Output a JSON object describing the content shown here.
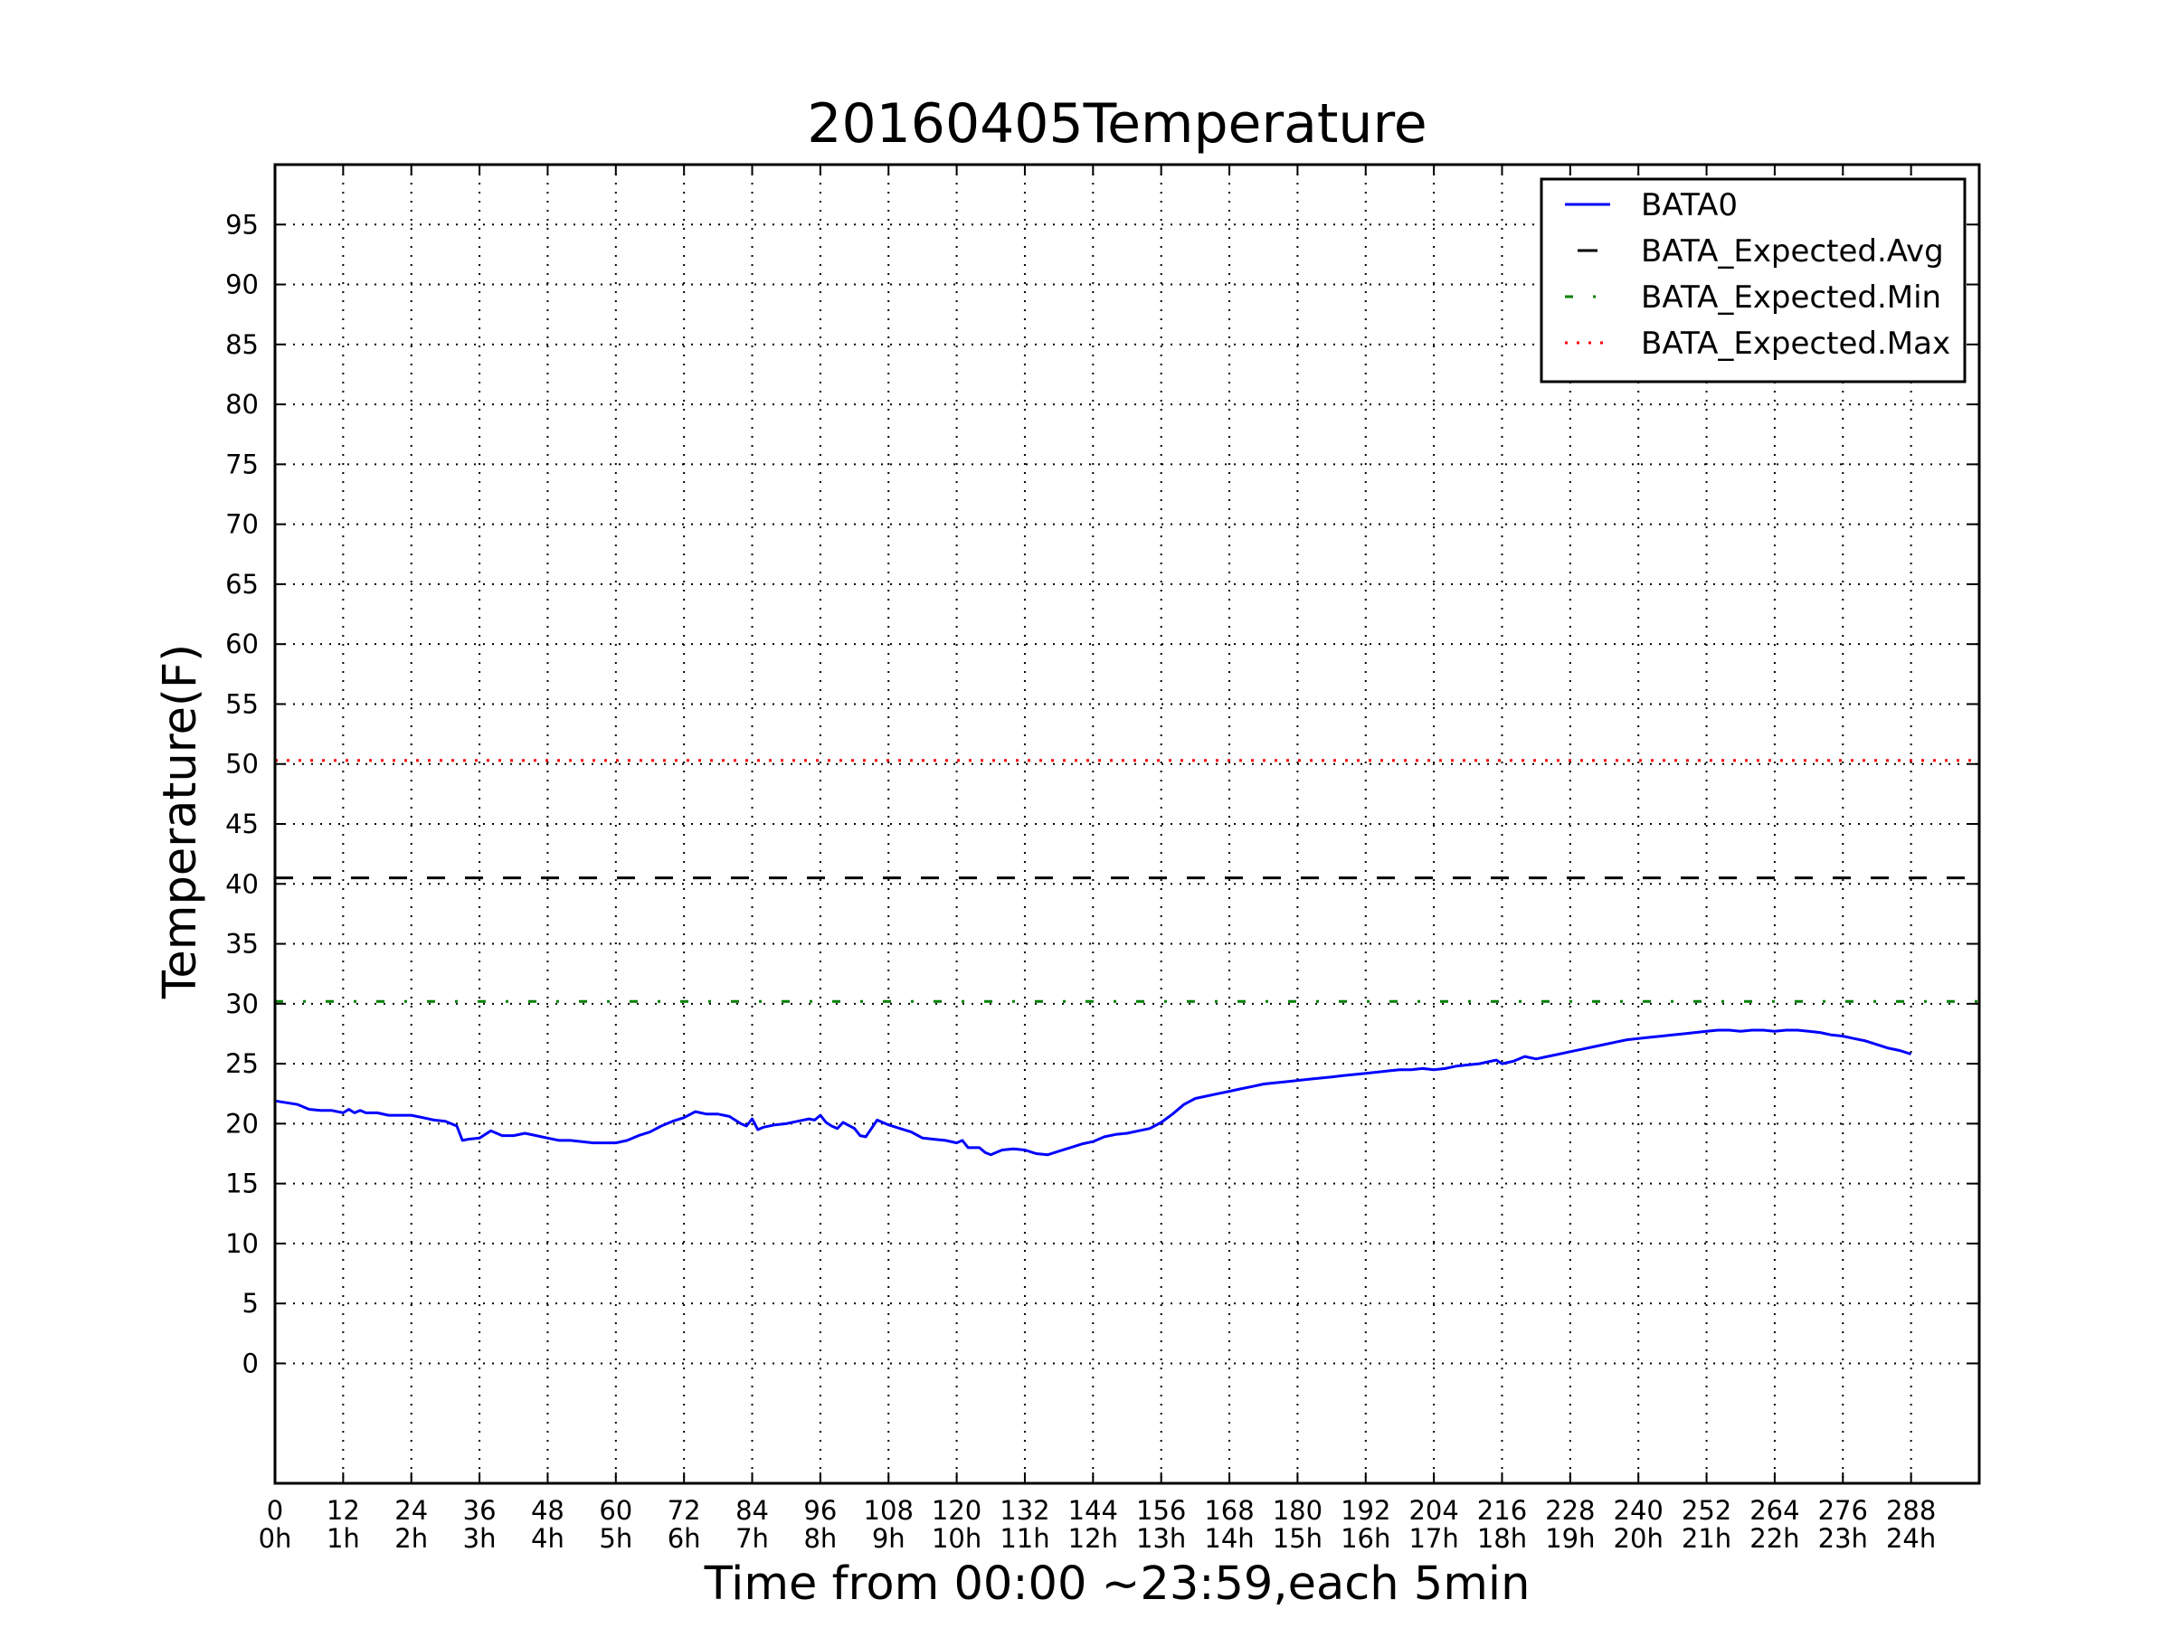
{
  "chart_data": {
    "type": "line",
    "title": "20160405Temperature",
    "xlabel": "Time from 00:00 ~23:59,each 5min",
    "ylabel": "Temperature(F)",
    "xlim": [
      0,
      300
    ],
    "ylim": [
      -10,
      100
    ],
    "grid": true,
    "legend_position": "top-right",
    "x_ticks": [
      0,
      12,
      24,
      36,
      48,
      60,
      72,
      84,
      96,
      108,
      120,
      132,
      144,
      156,
      168,
      180,
      192,
      204,
      216,
      228,
      240,
      252,
      264,
      276,
      288
    ],
    "x_tick_labels": [
      "0",
      "12",
      "24",
      "36",
      "48",
      "60",
      "72",
      "84",
      "96",
      "108",
      "120",
      "132",
      "144",
      "156",
      "168",
      "180",
      "192",
      "204",
      "216",
      "228",
      "240",
      "252",
      "264",
      "276",
      "288"
    ],
    "x_tick_sublabels": [
      "0h",
      "1h",
      "2h",
      "3h",
      "4h",
      "5h",
      "6h",
      "7h",
      "8h",
      "9h",
      "10h",
      "11h",
      "12h",
      "13h",
      "14h",
      "15h",
      "16h",
      "17h",
      "18h",
      "19h",
      "20h",
      "21h",
      "22h",
      "23h",
      "24h"
    ],
    "y_ticks": [
      0,
      5,
      10,
      15,
      20,
      25,
      30,
      35,
      40,
      45,
      50,
      55,
      60,
      65,
      70,
      75,
      80,
      85,
      90,
      95
    ],
    "y_tick_labels": [
      "0",
      "5",
      "10",
      "15",
      "20",
      "25",
      "30",
      "35",
      "40",
      "45",
      "50",
      "55",
      "60",
      "65",
      "70",
      "75",
      "80",
      "85",
      "90",
      "95"
    ],
    "series": [
      {
        "name": "BATA0",
        "color": "#0000ff",
        "style": "solid",
        "x": [
          0,
          4,
          6,
          8,
          10,
          12,
          13,
          14,
          15,
          16,
          18,
          20,
          22,
          24,
          26,
          28,
          30,
          31,
          32,
          33,
          34,
          36,
          38,
          40,
          42,
          44,
          46,
          48,
          50,
          52,
          54,
          56,
          58,
          60,
          62,
          64,
          66,
          68,
          70,
          72,
          74,
          76,
          78,
          80,
          82,
          83,
          84,
          85,
          86,
          88,
          90,
          92,
          94,
          95,
          96,
          97,
          98,
          99,
          100,
          102,
          103,
          104,
          105,
          106,
          108,
          110,
          112,
          114,
          116,
          118,
          120,
          121,
          122,
          124,
          125,
          126,
          128,
          130,
          132,
          134,
          136,
          138,
          140,
          142,
          144,
          146,
          148,
          150,
          152,
          154,
          156,
          158,
          160,
          162,
          164,
          166,
          168,
          170,
          172,
          174,
          176,
          178,
          180,
          182,
          184,
          186,
          188,
          190,
          192,
          194,
          196,
          198,
          200,
          202,
          204,
          206,
          208,
          210,
          212,
          214,
          215,
          216,
          218,
          220,
          222,
          224,
          226,
          228,
          230,
          232,
          234,
          236,
          238,
          240,
          242,
          244,
          246,
          248,
          250,
          252,
          254,
          256,
          258,
          260,
          262,
          264,
          266,
          268,
          270,
          272,
          274,
          276,
          278,
          280,
          282,
          284,
          286,
          288
        ],
        "y": [
          21.9,
          21.6,
          21.2,
          21.1,
          21.1,
          20.9,
          21.2,
          20.9,
          21.1,
          20.9,
          20.9,
          20.7,
          20.7,
          20.7,
          20.5,
          20.3,
          20.2,
          20.0,
          19.8,
          18.6,
          18.7,
          18.8,
          19.4,
          19.0,
          19.0,
          19.2,
          19.0,
          18.8,
          18.6,
          18.6,
          18.5,
          18.4,
          18.4,
          18.4,
          18.6,
          19.0,
          19.3,
          19.8,
          20.2,
          20.5,
          21.0,
          20.8,
          20.8,
          20.6,
          20.0,
          19.8,
          20.4,
          19.5,
          19.7,
          19.9,
          20.0,
          20.2,
          20.4,
          20.3,
          20.7,
          20.1,
          19.8,
          19.6,
          20.1,
          19.6,
          19.0,
          18.9,
          19.6,
          20.3,
          19.9,
          19.6,
          19.3,
          18.8,
          18.7,
          18.6,
          18.4,
          18.6,
          18.0,
          18.0,
          17.6,
          17.4,
          17.8,
          17.9,
          17.8,
          17.5,
          17.4,
          17.7,
          18.0,
          18.3,
          18.5,
          18.9,
          19.1,
          19.2,
          19.4,
          19.6,
          20.1,
          20.8,
          21.6,
          22.1,
          22.3,
          22.5,
          22.7,
          22.9,
          23.1,
          23.3,
          23.4,
          23.5,
          23.6,
          23.7,
          23.8,
          23.9,
          24.0,
          24.1,
          24.2,
          24.3,
          24.4,
          24.5,
          24.5,
          24.6,
          24.5,
          24.6,
          24.8,
          24.9,
          25.0,
          25.2,
          25.3,
          25.0,
          25.2,
          25.6,
          25.4,
          25.6,
          25.8,
          26.0,
          26.2,
          26.4,
          26.6,
          26.8,
          27.0,
          27.1,
          27.2,
          27.3,
          27.4,
          27.5,
          27.6,
          27.7,
          27.8,
          27.8,
          27.7,
          27.8,
          27.8,
          27.7,
          27.8,
          27.8,
          27.7,
          27.6,
          27.4,
          27.3,
          27.1,
          26.9,
          26.6,
          26.3,
          26.1,
          25.8
        ]
      },
      {
        "name": "BATA_Expected.Avg",
        "color": "#000000",
        "style": "dashed",
        "x": [
          0,
          300
        ],
        "y": [
          40.5,
          40.5
        ]
      },
      {
        "name": "BATA_Expected.Min",
        "color": "#008000",
        "style": "dashdot",
        "x": [
          0,
          300
        ],
        "y": [
          30.2,
          30.2
        ]
      },
      {
        "name": "BATA_Expected.Max",
        "color": "#ff0000",
        "style": "dotted",
        "x": [
          0,
          300
        ],
        "y": [
          50.3,
          50.3
        ]
      }
    ]
  }
}
